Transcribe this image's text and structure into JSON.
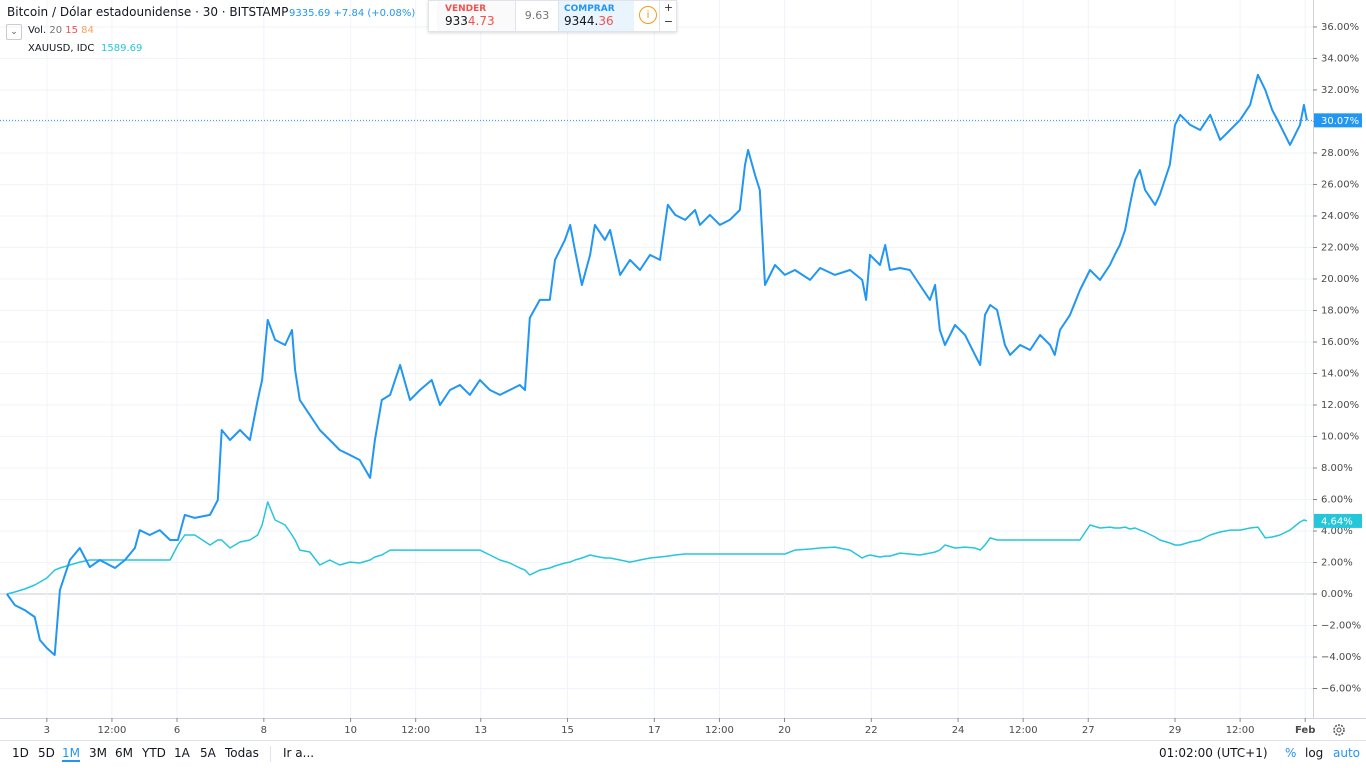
{
  "chart_data": {
    "type": "line",
    "x": [
      2.08,
      2.26,
      2.49,
      2.72,
      2.84,
      3.0,
      3.18,
      3.3,
      3.53,
      3.76,
      3.99,
      4.22,
      4.57,
      4.8,
      5.03,
      5.14,
      5.37,
      5.6,
      5.84,
      6.02,
      6.18,
      6.41,
      6.76,
      6.94,
      7.03,
      7.22,
      7.45,
      7.68,
      7.86,
      7.96,
      8.09,
      8.26,
      8.49,
      8.65,
      8.72,
      8.83,
      9.06,
      9.29,
      9.52,
      9.75,
      9.98,
      10.21,
      10.45,
      10.56,
      10.72,
      10.91,
      11.14,
      11.37,
      11.6,
      11.87,
      12.06,
      12.29,
      12.52,
      12.75,
      12.98,
      13.21,
      13.44,
      13.67,
      13.9,
      14.02,
      14.13,
      14.36,
      14.59,
      14.71,
      14.94,
      15.06,
      15.17,
      15.33,
      15.52,
      15.63,
      15.86,
      15.98,
      16.21,
      16.44,
      16.67,
      16.9,
      17.13,
      17.31,
      17.48,
      17.71,
      17.94,
      18.05,
      18.28,
      18.51,
      18.74,
      18.97,
      19.09,
      19.16,
      19.32,
      19.43,
      19.55,
      19.78,
      20.01,
      20.24,
      20.59,
      20.82,
      21.16,
      21.51,
      21.79,
      21.88,
      21.97,
      22.2,
      22.32,
      22.43,
      22.66,
      22.89,
      23.12,
      23.35,
      23.47,
      23.58,
      23.7,
      23.93,
      24.16,
      24.39,
      24.51,
      24.62,
      24.74,
      24.9,
      25.08,
      25.2,
      25.43,
      25.66,
      25.89,
      26.12,
      26.23,
      26.35,
      26.58,
      26.81,
      27.04,
      27.27,
      27.5,
      27.61,
      27.73,
      27.85,
      27.96,
      28.08,
      28.19,
      28.31,
      28.54,
      28.65,
      28.88,
      29.0,
      29.12,
      29.35,
      29.58,
      29.81,
      30.04,
      30.27,
      30.5,
      30.73,
      30.91,
      31.08,
      31.24,
      31.42,
      31.65,
      31.88,
      31.97,
      32.04
    ],
    "series": [
      {
        "name": "Bitcoin / Dólar estadounidense · 30 · BITSTAMP",
        "legend_value": "9335.69 +7.84 (+0.08%)",
        "last_value_label": "30.07%",
        "color": "#2196f3",
        "values": [
          0,
          -0.7,
          -1.02,
          -1.46,
          -2.92,
          -3.43,
          -3.87,
          0.25,
          2.16,
          2.92,
          1.71,
          2.16,
          1.65,
          2.16,
          2.92,
          4.06,
          3.75,
          4.06,
          3.43,
          3.43,
          5.02,
          4.83,
          5.02,
          5.97,
          10.41,
          9.78,
          10.41,
          9.78,
          12.32,
          13.59,
          17.4,
          16.13,
          15.81,
          16.76,
          14.22,
          12.32,
          11.37,
          10.41,
          9.78,
          9.14,
          8.83,
          8.51,
          7.37,
          9.78,
          12.32,
          12.64,
          14.54,
          12.32,
          12.95,
          13.59,
          12.0,
          12.95,
          13.27,
          12.64,
          13.59,
          12.95,
          12.64,
          12.95,
          13.27,
          12.95,
          17.53,
          18.67,
          18.67,
          21.21,
          22.48,
          23.43,
          21.84,
          19.62,
          21.53,
          23.43,
          22.48,
          23.11,
          20.26,
          21.21,
          20.57,
          21.53,
          21.21,
          24.7,
          24.07,
          23.75,
          24.38,
          23.43,
          24.07,
          23.43,
          23.75,
          24.38,
          27.24,
          28.19,
          26.61,
          25.65,
          19.62,
          20.89,
          20.26,
          20.57,
          19.94,
          20.7,
          20.26,
          20.57,
          19.94,
          18.67,
          21.53,
          20.89,
          22.16,
          20.57,
          20.7,
          20.57,
          19.62,
          18.67,
          19.62,
          16.76,
          15.81,
          17.08,
          16.45,
          15.18,
          14.54,
          17.72,
          18.35,
          18.03,
          15.81,
          15.18,
          15.81,
          15.49,
          16.45,
          15.81,
          15.18,
          16.76,
          17.72,
          19.3,
          20.57,
          19.94,
          20.89,
          21.53,
          22.16,
          23.11,
          24.7,
          26.29,
          26.92,
          25.65,
          24.7,
          25.34,
          27.24,
          29.78,
          30.42,
          29.78,
          29.46,
          30.42,
          28.83,
          29.46,
          30.1,
          31.05,
          32.96,
          32.0,
          30.73,
          29.78,
          28.51,
          29.78,
          31.05,
          30.07
        ]
      },
      {
        "name": "XAUUSD, IDC",
        "legend_value": "1589.69",
        "last_value_label": "4.64%",
        "color": "#26c6da",
        "values": [
          0,
          0.13,
          0.32,
          0.57,
          0.76,
          1.02,
          1.52,
          1.65,
          1.84,
          2.03,
          2.16,
          2.16,
          2.16,
          2.16,
          2.16,
          2.16,
          2.16,
          2.16,
          2.16,
          3.11,
          3.75,
          3.75,
          3.11,
          3.43,
          3.43,
          2.92,
          3.3,
          3.43,
          3.75,
          4.38,
          5.84,
          4.7,
          4.38,
          3.75,
          3.43,
          2.79,
          2.67,
          1.84,
          2.16,
          1.84,
          2.03,
          1.97,
          2.16,
          2.35,
          2.48,
          2.79,
          2.79,
          2.79,
          2.79,
          2.79,
          2.79,
          2.79,
          2.79,
          2.79,
          2.79,
          2.48,
          2.16,
          1.97,
          1.65,
          1.52,
          1.21,
          1.52,
          1.65,
          1.78,
          1.97,
          2.03,
          2.16,
          2.29,
          2.48,
          2.41,
          2.29,
          2.29,
          2.16,
          2.03,
          2.16,
          2.29,
          2.35,
          2.41,
          2.48,
          2.54,
          2.54,
          2.54,
          2.54,
          2.54,
          2.54,
          2.54,
          2.54,
          2.54,
          2.54,
          2.54,
          2.54,
          2.54,
          2.54,
          2.79,
          2.86,
          2.92,
          2.98,
          2.79,
          2.29,
          2.41,
          2.48,
          2.35,
          2.41,
          2.41,
          2.6,
          2.54,
          2.48,
          2.6,
          2.67,
          2.79,
          3.11,
          2.92,
          2.98,
          2.92,
          2.79,
          3.11,
          3.56,
          3.43,
          3.43,
          3.43,
          3.43,
          3.43,
          3.43,
          3.43,
          3.43,
          3.43,
          3.43,
          3.43,
          4.38,
          4.19,
          4.25,
          4.19,
          4.19,
          4.25,
          4.13,
          4.19,
          4.06,
          3.94,
          3.62,
          3.43,
          3.24,
          3.11,
          3.11,
          3.3,
          3.43,
          3.75,
          3.94,
          4.06,
          4.06,
          4.19,
          4.25,
          3.56,
          3.62,
          3.75,
          4.06,
          4.57,
          4.7,
          4.64
        ]
      }
    ],
    "xlim": [
      1.92,
      32.18
    ],
    "xticks": [
      3,
      {
        "value": 4.5,
        "label": "12:00"
      },
      6,
      8,
      10,
      {
        "value": 11.5,
        "label": "12:00"
      },
      13,
      15,
      17,
      {
        "value": 18.5,
        "label": "12:00"
      },
      20,
      22,
      24,
      {
        "value": 25.5,
        "label": "12:00"
      },
      27,
      29,
      {
        "value": 30.5,
        "label": "12:00"
      },
      {
        "value": 32,
        "label": "Feb"
      }
    ],
    "ylim": [
      -7.87,
      37.71
    ],
    "yticks": [
      {
        "value": -6,
        "label": "−6.00%"
      },
      {
        "value": -4,
        "label": "−4.00%"
      },
      {
        "value": -2,
        "label": "−2.00%"
      },
      {
        "value": 0,
        "label": "0.00%"
      },
      {
        "value": 2,
        "label": "2.00%"
      },
      {
        "value": 4,
        "label": "4.00%"
      },
      {
        "value": 6,
        "label": "6.00%"
      },
      {
        "value": 8,
        "label": "8.00%"
      },
      {
        "value": 10,
        "label": "10.00%"
      },
      {
        "value": 12,
        "label": "12.00%"
      },
      {
        "value": 14,
        "label": "14.00%"
      },
      {
        "value": 16,
        "label": "16.00%"
      },
      {
        "value": 18,
        "label": "18.00%"
      },
      {
        "value": 20,
        "label": "20.00%"
      },
      {
        "value": 22,
        "label": "22.00%"
      },
      {
        "value": 24,
        "label": "24.00%"
      },
      {
        "value": 26,
        "label": "26.00%"
      },
      {
        "value": 28,
        "label": "28.00%"
      },
      {
        "value": 30,
        "label": "30.00%"
      },
      {
        "value": 32,
        "label": "32.00%"
      },
      {
        "value": 34,
        "label": "34.00%"
      },
      {
        "value": 36,
        "label": "36.00%"
      }
    ],
    "grid": true
  },
  "volume_legend": {
    "label": "Vol.",
    "params": [
      "20",
      "15",
      "84"
    ]
  },
  "trade": {
    "sell_label": "VENDER",
    "sell_price_head": "933",
    "sell_price_tail": "4.73",
    "spread": "9.63",
    "buy_label": "COMPRAR",
    "buy_price_head": "9344.",
    "buy_price_tail": "36",
    "plus": "+",
    "minus": "−"
  },
  "toolbar": {
    "ranges": [
      "1D",
      "5D",
      "1M",
      "3M",
      "6M",
      "YTD",
      "1A",
      "5A",
      "Todas"
    ],
    "goto": "Ir a...",
    "clock": "01:02:00 (UTC+1)",
    "percent": "%",
    "log": "log",
    "auto": "auto"
  }
}
